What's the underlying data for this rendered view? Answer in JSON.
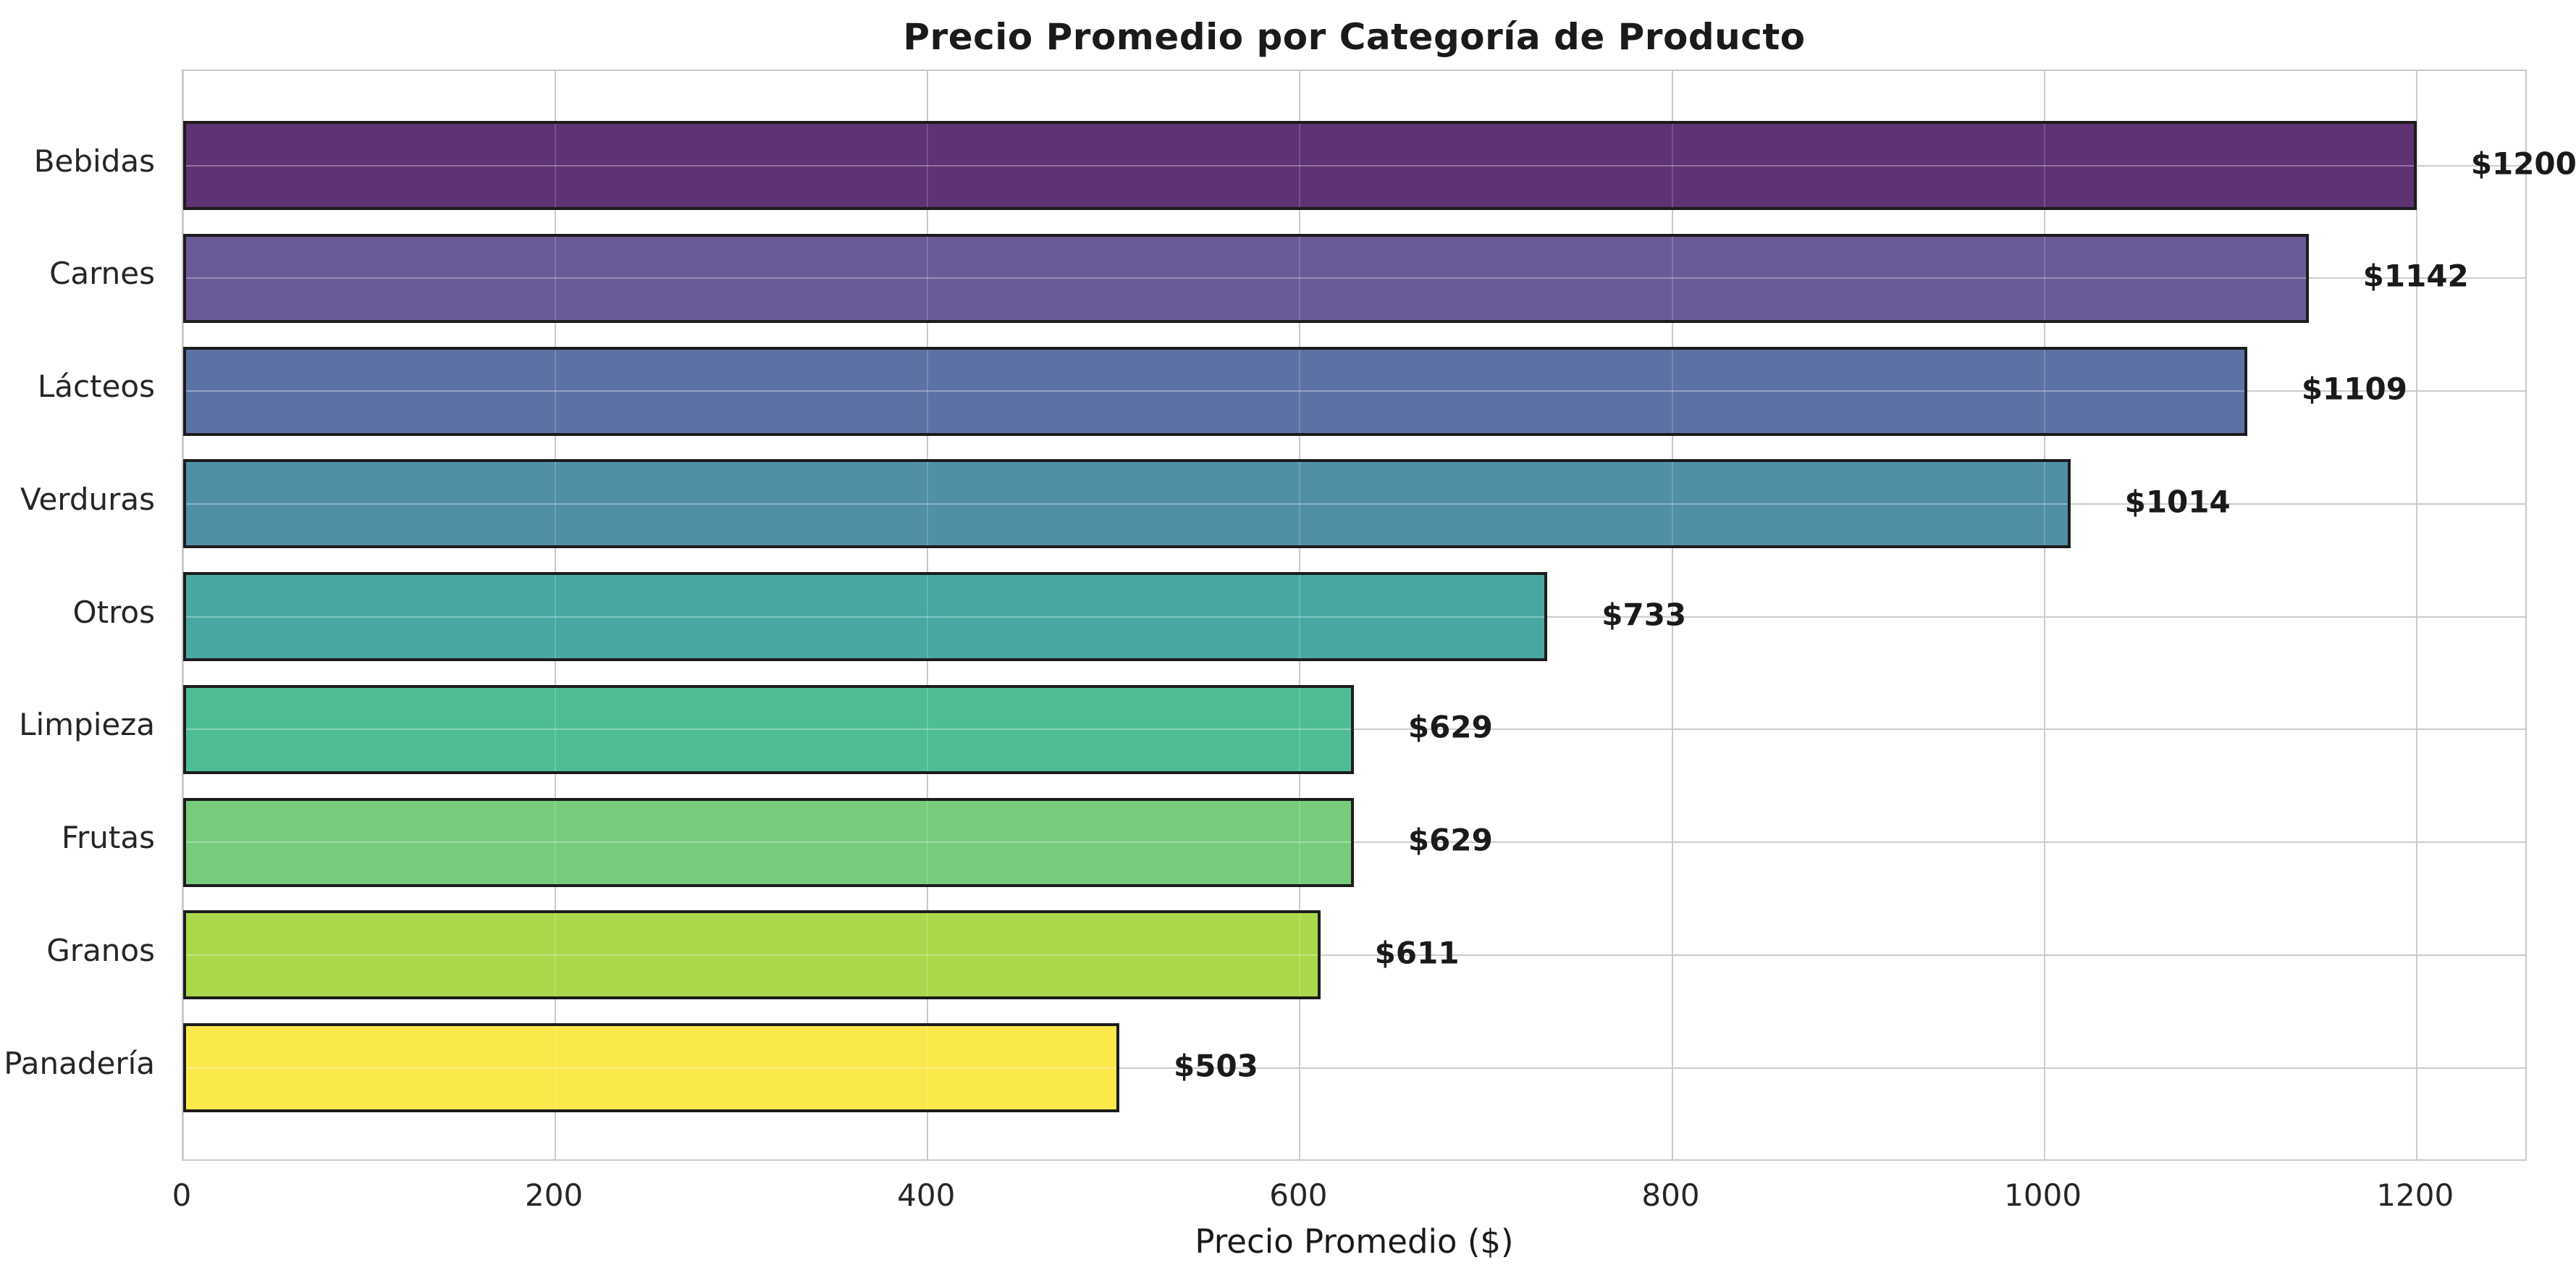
{
  "figure": {
    "title": "Precio Promedio por Categoría de Producto",
    "xlabel": "Precio Promedio ($)"
  },
  "chart_data": {
    "type": "bar",
    "orientation": "horizontal",
    "title": "Precio Promedio por Categoría de Producto",
    "xlabel": "Precio Promedio ($)",
    "ylabel": "",
    "categories": [
      "Bebidas",
      "Carnes",
      "Lácteos",
      "Verduras",
      "Otros",
      "Limpieza",
      "Frutas",
      "Granos",
      "Panadería"
    ],
    "values": [
      1200,
      1142,
      1109,
      1014,
      733,
      629,
      629,
      611,
      503
    ],
    "value_labels": [
      "$1200",
      "$1142",
      "$1109",
      "$1014",
      "$733",
      "$629",
      "$629",
      "$611",
      "$503"
    ],
    "xticks": [
      "0",
      "200",
      "400",
      "600",
      "800",
      "1000",
      "1200"
    ],
    "xtick_values": [
      0,
      200,
      400,
      600,
      800,
      1000,
      1200
    ],
    "xlim": [
      0,
      1260
    ],
    "grid": true,
    "legend": false,
    "bar_colors": [
      "#5f3273",
      "#6a5a97",
      "#5d72a4",
      "#518fa5",
      "#48a8a1",
      "#4ebd94",
      "#76cc7b",
      "#abd84b",
      "#fbe84b"
    ],
    "bar_edge_color": "#1c1c1c",
    "grid_color": "#cbcbcb",
    "text_color": "#262626"
  }
}
